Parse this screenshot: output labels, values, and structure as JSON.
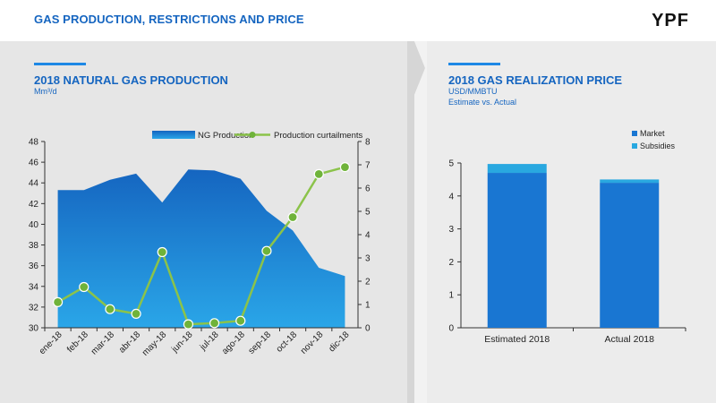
{
  "header": {
    "title": "GAS PRODUCTION, RESTRICTIONS AND PRICE",
    "logo": "YPF"
  },
  "left": {
    "title": "2018 NATURAL GAS PRODUCTION",
    "unit": "Mm³/d"
  },
  "right": {
    "title": "2018 GAS REALIZATION PRICE",
    "unit": "USD/MMBTU",
    "note": "Estimate vs. Actual"
  },
  "colors": {
    "brand_blue": "#1565c0",
    "area": "#1976d2",
    "line": "#8bc34a",
    "market": "#1976d2",
    "subsidies": "#29a8e0"
  },
  "chart_data": [
    {
      "type": "area",
      "categories": [
        "ene-18",
        "feb-18",
        "mar-18",
        "abr-18",
        "may-18",
        "jun-18",
        "jul-18",
        "ago-18",
        "sep-18",
        "oct-18",
        "nov-18",
        "dic-18"
      ],
      "series": [
        {
          "name": "NG Production",
          "type": "area",
          "axis": "left",
          "values": [
            43.3,
            43.3,
            44.3,
            44.9,
            42.1,
            45.3,
            45.2,
            44.4,
            41.3,
            39.4,
            35.8,
            35.0
          ]
        },
        {
          "name": "Production curtailments",
          "type": "line",
          "axis": "right",
          "values": [
            1.1,
            1.75,
            0.8,
            0.6,
            3.25,
            0.15,
            0.2,
            0.3,
            3.3,
            4.75,
            6.6,
            6.9
          ]
        }
      ],
      "ylim_left": [
        30,
        48
      ],
      "yticks_left": [
        30,
        32,
        34,
        36,
        38,
        40,
        42,
        44,
        46,
        48
      ],
      "ylim_right": [
        0,
        8
      ],
      "yticks_right": [
        0,
        1,
        2,
        3,
        4,
        5,
        6,
        7,
        8
      ],
      "legend": "top"
    },
    {
      "type": "bar",
      "stacked": true,
      "categories": [
        "Estimated 2018",
        "Actual 2018"
      ],
      "series": [
        {
          "name": "Market",
          "values": [
            4.7,
            4.4
          ]
        },
        {
          "name": "Subsidies",
          "values": [
            0.27,
            0.1
          ]
        }
      ],
      "ylim": [
        0,
        5
      ],
      "yticks": [
        0,
        1,
        2,
        3,
        4,
        5
      ],
      "legend": "top-right"
    }
  ]
}
